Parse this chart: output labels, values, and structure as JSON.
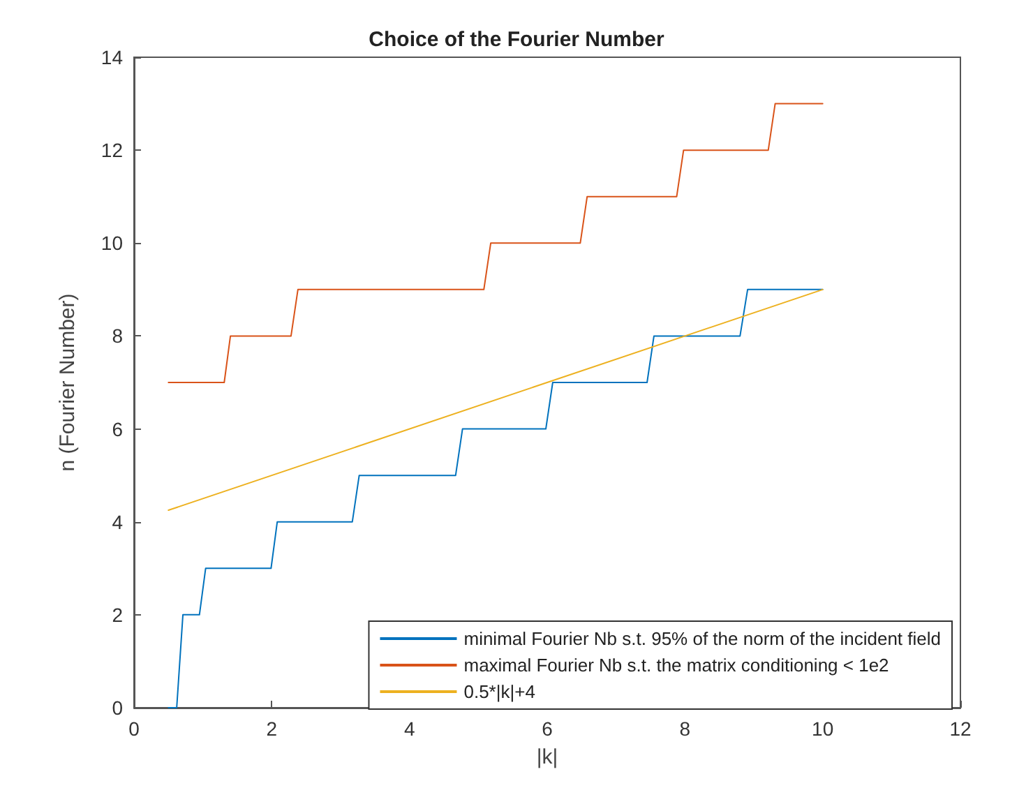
{
  "chart_data": {
    "type": "line",
    "title": "Choice of the Fourier Number",
    "xlabel": "|k|",
    "ylabel": "n (Fourier Number)",
    "xlim": [
      0,
      12
    ],
    "xticks": [
      0,
      2,
      4,
      6,
      8,
      10,
      12
    ],
    "ylim": [
      0,
      14
    ],
    "yticks": [
      0,
      2,
      4,
      6,
      8,
      10,
      12,
      14
    ],
    "grid": false,
    "legend": "bottom right",
    "marker": "none",
    "line_style": "solid",
    "series": [
      {
        "name": "minimal Fourier Nb s.t. 95% of the norm of the incident field",
        "color": "#0072bd",
        "x": [
          0.5,
          0.62,
          0.71,
          0.95,
          1.04,
          1.99,
          2.08,
          3.17,
          3.27,
          4.67,
          4.77,
          5.98,
          6.08,
          7.45,
          7.55,
          8.8,
          8.91,
          10
        ],
        "values": [
          0,
          0,
          2,
          2,
          3,
          3,
          4,
          4,
          5,
          5,
          6,
          6,
          7,
          7,
          8,
          8,
          9,
          9
        ]
      },
      {
        "name": "maximal Fourier Nb s.t. the matrix conditioning < 1e2",
        "color": "#d95319",
        "x": [
          0.5,
          1.31,
          1.4,
          2.28,
          2.38,
          5.08,
          5.18,
          6.48,
          6.58,
          7.88,
          7.98,
          9.21,
          9.31,
          10
        ],
        "values": [
          7,
          7,
          8,
          8,
          9,
          9,
          10,
          10,
          11,
          11,
          12,
          12,
          13,
          13
        ]
      },
      {
        "name": "0.5*|k|+4",
        "color": "#edb120",
        "x": [
          0.5,
          10
        ],
        "values": [
          4.25,
          9
        ]
      }
    ]
  }
}
